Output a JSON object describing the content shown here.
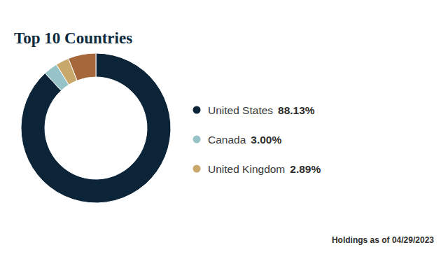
{
  "chart_data": {
    "type": "donut",
    "title": "Top 10 Countries",
    "categories": [
      "United States",
      "Canada",
      "United Kingdom",
      null
    ],
    "values": [
      88.13,
      3.0,
      2.89,
      5.98
    ],
    "value_labels": [
      "88.13%",
      "3.00%",
      "2.89%",
      null
    ],
    "colors": [
      "#0b2438",
      "#96c3c7",
      "#c9a96b",
      "#a6673a"
    ],
    "legend": "right",
    "annotation": "Holdings as of 04/29/2023"
  }
}
